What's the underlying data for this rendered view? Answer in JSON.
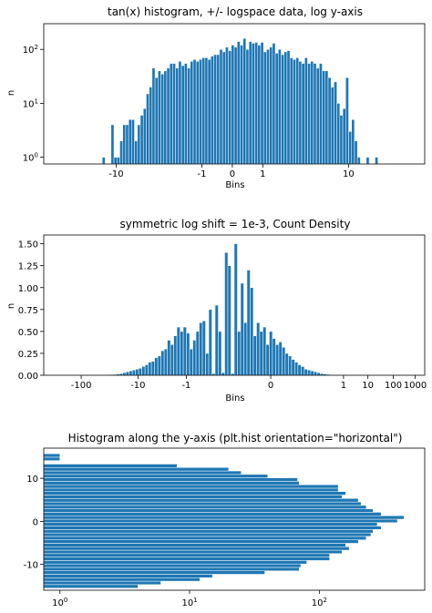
{
  "figure": {
    "bar_color": "#1f77b4",
    "bar_edge": "#ffffff",
    "axis_color": "#000000"
  },
  "chart_data": [
    {
      "type": "bar",
      "title": "tan(x) histogram, +/- logspace data, log y-axis",
      "xlabel": "Bins",
      "ylabel": "n",
      "yscale": "log",
      "ylim": [
        0.75,
        300
      ],
      "xlim": [
        0,
        100
      ],
      "x_tick_labels": [
        "-10",
        "-1",
        "0",
        "1",
        "10"
      ],
      "x_tick_positions": [
        19,
        41.5,
        49.5,
        57.5,
        80
      ],
      "y_tick_labels": [
        "10^0",
        "10^1",
        "10^2"
      ],
      "y_tick_values": [
        1,
        10,
        100
      ],
      "bins": 100,
      "values": [
        0,
        0,
        0,
        0,
        0,
        1,
        0,
        0,
        4,
        1,
        1,
        2,
        4,
        4,
        5,
        5,
        2,
        4,
        6,
        8,
        15,
        20,
        45,
        30,
        40,
        35,
        40,
        45,
        55,
        55,
        45,
        60,
        50,
        55,
        45,
        60,
        65,
        60,
        65,
        70,
        70,
        65,
        75,
        80,
        80,
        100,
        90,
        110,
        95,
        120,
        110,
        140,
        120,
        160,
        100,
        140,
        130,
        135,
        120,
        135,
        90,
        100,
        110,
        130,
        85,
        100,
        80,
        90,
        95,
        70,
        65,
        70,
        60,
        55,
        70,
        55,
        60,
        55,
        45,
        55,
        40,
        40,
        30,
        20,
        25,
        10,
        6,
        8,
        30,
        3,
        5,
        2,
        1,
        0,
        0,
        1,
        0,
        0,
        1,
        0
      ]
    },
    {
      "type": "bar",
      "title": "symmetric log shift = 1e-3, Count Density",
      "xlabel": "Bins",
      "ylabel": "n",
      "ylim": [
        0,
        1.6
      ],
      "x_tick_labels": [
        "-100",
        "-10",
        "-1",
        "0",
        "1",
        "10",
        "100",
        "1000"
      ],
      "x_tick_positions": [
        8.2,
        23.8,
        37.1,
        60.3,
        80.3,
        87.0,
        94.0,
        100
      ],
      "y_tick_labels": [
        "0.00",
        "0.25",
        "0.50",
        "0.75",
        "1.00",
        "1.25",
        "1.50"
      ],
      "y_tick_values": [
        0,
        0.25,
        0.5,
        0.75,
        1.0,
        1.25,
        1.5
      ],
      "bins": 110,
      "values": [
        0,
        0,
        0,
        0,
        0,
        0,
        0,
        0,
        0,
        0,
        0,
        0,
        0,
        0.003,
        0.005,
        0.007,
        0.008,
        0.01,
        0.015,
        0.02,
        0.03,
        0.04,
        0.05,
        0.06,
        0.07,
        0.08,
        0.1,
        0.12,
        0.15,
        0.16,
        0.2,
        0.22,
        0.28,
        0.3,
        0.4,
        0.35,
        0.45,
        0.55,
        0.5,
        0.55,
        0.48,
        0.3,
        0.4,
        0.5,
        0.6,
        0.62,
        0.25,
        0.75,
        0.02,
        0.8,
        0.5,
        0.03,
        1.4,
        1.25,
        0.02,
        1.5,
        0.5,
        1.05,
        0.6,
        1.2,
        1.0,
        0.45,
        0.6,
        0.5,
        0.55,
        0.35,
        0.5,
        0.42,
        0.35,
        0.38,
        0.32,
        0.25,
        0.22,
        0.18,
        0.15,
        0.12,
        0.1,
        0.07,
        0.06,
        0.05,
        0.04,
        0.03,
        0.02,
        0.015,
        0.01,
        0.008,
        0.005,
        0.003,
        0.002,
        0.001,
        0,
        0,
        0,
        0,
        0,
        0,
        0,
        0,
        0,
        0,
        0,
        0,
        0,
        0,
        0,
        0,
        0,
        0,
        0,
        0
      ]
    },
    {
      "type": "barh",
      "title": "Histogram along the y-axis (plt.hist orientation=\"horizontal\")",
      "xscale": "log",
      "xlim": [
        0.75,
        650
      ],
      "ylim": [
        -16,
        17
      ],
      "x_tick_labels": [
        "10^0",
        "10^1",
        "10^2"
      ],
      "x_tick_values": [
        1,
        10,
        100
      ],
      "y_tick_labels": [
        "10",
        "0",
        "-10"
      ],
      "y_tick_values": [
        10,
        0,
        -10
      ],
      "bins": [
        {
          "y0": -15.5,
          "y1": -14.7,
          "value": 4
        },
        {
          "y0": -14.7,
          "y1": -13.9,
          "value": 6
        },
        {
          "y0": -13.9,
          "y1": -13.1,
          "value": 12
        },
        {
          "y0": -13.1,
          "y1": -12.3,
          "value": 15
        },
        {
          "y0": -12.3,
          "y1": -11.5,
          "value": 38
        },
        {
          "y0": -11.5,
          "y1": -10.7,
          "value": 70
        },
        {
          "y0": -10.7,
          "y1": -9.9,
          "value": 72
        },
        {
          "y0": -9.9,
          "y1": -9.1,
          "value": 80
        },
        {
          "y0": -9.1,
          "y1": -8.3,
          "value": 120
        },
        {
          "y0": -8.3,
          "y1": -7.5,
          "value": 120
        },
        {
          "y0": -7.5,
          "y1": -6.7,
          "value": 150
        },
        {
          "y0": -6.7,
          "y1": -5.9,
          "value": 170
        },
        {
          "y0": -5.9,
          "y1": -5.1,
          "value": 160
        },
        {
          "y0": -5.1,
          "y1": -4.3,
          "value": 200
        },
        {
          "y0": -4.3,
          "y1": -3.5,
          "value": 230
        },
        {
          "y0": -3.5,
          "y1": -2.7,
          "value": 250
        },
        {
          "y0": -2.7,
          "y1": -1.9,
          "value": 260
        },
        {
          "y0": -1.9,
          "y1": -1.1,
          "value": 300
        },
        {
          "y0": -1.1,
          "y1": -0.3,
          "value": 280
        },
        {
          "y0": -0.3,
          "y1": 0.5,
          "value": 400
        },
        {
          "y0": 0.5,
          "y1": 1.3,
          "value": 450
        },
        {
          "y0": 1.3,
          "y1": 2.1,
          "value": 300
        },
        {
          "y0": 2.1,
          "y1": 2.9,
          "value": 260
        },
        {
          "y0": 2.9,
          "y1": 3.7,
          "value": 230
        },
        {
          "y0": 3.7,
          "y1": 4.5,
          "value": 210
        },
        {
          "y0": 4.5,
          "y1": 5.3,
          "value": 200
        },
        {
          "y0": 5.3,
          "y1": 6.1,
          "value": 150
        },
        {
          "y0": 6.1,
          "y1": 6.9,
          "value": 160
        },
        {
          "y0": 6.9,
          "y1": 7.7,
          "value": 140
        },
        {
          "y0": 7.7,
          "y1": 8.5,
          "value": 140
        },
        {
          "y0": 8.5,
          "y1": 9.3,
          "value": 70
        },
        {
          "y0": 9.3,
          "y1": 10.1,
          "value": 68
        },
        {
          "y0": 10.1,
          "y1": 10.9,
          "value": 40
        },
        {
          "y0": 10.9,
          "y1": 11.7,
          "value": 25
        },
        {
          "y0": 11.7,
          "y1": 12.5,
          "value": 20
        },
        {
          "y0": 12.5,
          "y1": 13.3,
          "value": 8
        },
        {
          "y0": 14.1,
          "y1": 14.9,
          "value": 1
        },
        {
          "y0": 14.9,
          "y1": 15.7,
          "value": 1
        }
      ]
    }
  ]
}
